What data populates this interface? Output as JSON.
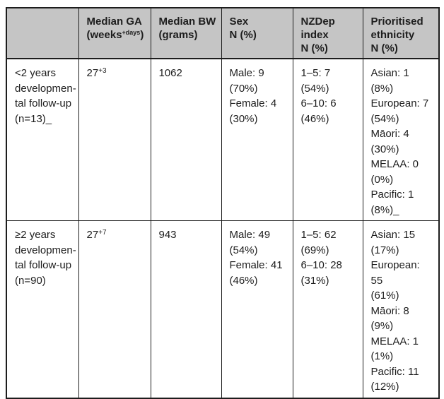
{
  "colors": {
    "header_bg": "#c5c5c5",
    "border": "#1d1d1d",
    "text": "#1d1d1d",
    "page_bg": "#ffffff"
  },
  "table": {
    "header": {
      "col0": "",
      "ga_line1": "Median GA",
      "ga_pre": "(weeks",
      "ga_sup": "+days",
      "ga_post": ")",
      "bw": "Median BW\n(grams)",
      "sex": "Sex\nN (%)",
      "nzdep": "NZDep index\nN (%)",
      "ethnicity": "Prioritised\nethnicity\nN (%)"
    },
    "rows": [
      {
        "label": "<2 years\ndevelopmen-\ntal follow-up\n(n=13)_",
        "ga_base": "27",
        "ga_sup": "+3",
        "bw": "1062",
        "sex": "Male: 9 (70%)\nFemale: 4\n(30%)",
        "nzdep": "1–5: 7 (54%)\n6–10: 6 (46%)",
        "ethnicity": "Asian: 1 (8%)\nEuropean: 7\n(54%)\nMāori: 4 (30%)\nMELAA: 0 (0%)\nPacific: 1\n(8%)_"
      },
      {
        "label": "≥2 years\ndevelopmen-\ntal follow-up\n(n=90)",
        "ga_base": "27",
        "ga_sup": "+7",
        "bw": "943",
        "sex": "Male: 49 (54%)\nFemale: 41\n(46%)",
        "nzdep": "1–5: 62 (69%)\n6–10: 28 (31%)",
        "ethnicity": "Asian: 15\n(17%)\nEuropean: 55\n(61%)\nMāori: 8 (9%)\nMELAA: 1 (1%)\nPacific: 11\n(12%)"
      }
    ]
  }
}
